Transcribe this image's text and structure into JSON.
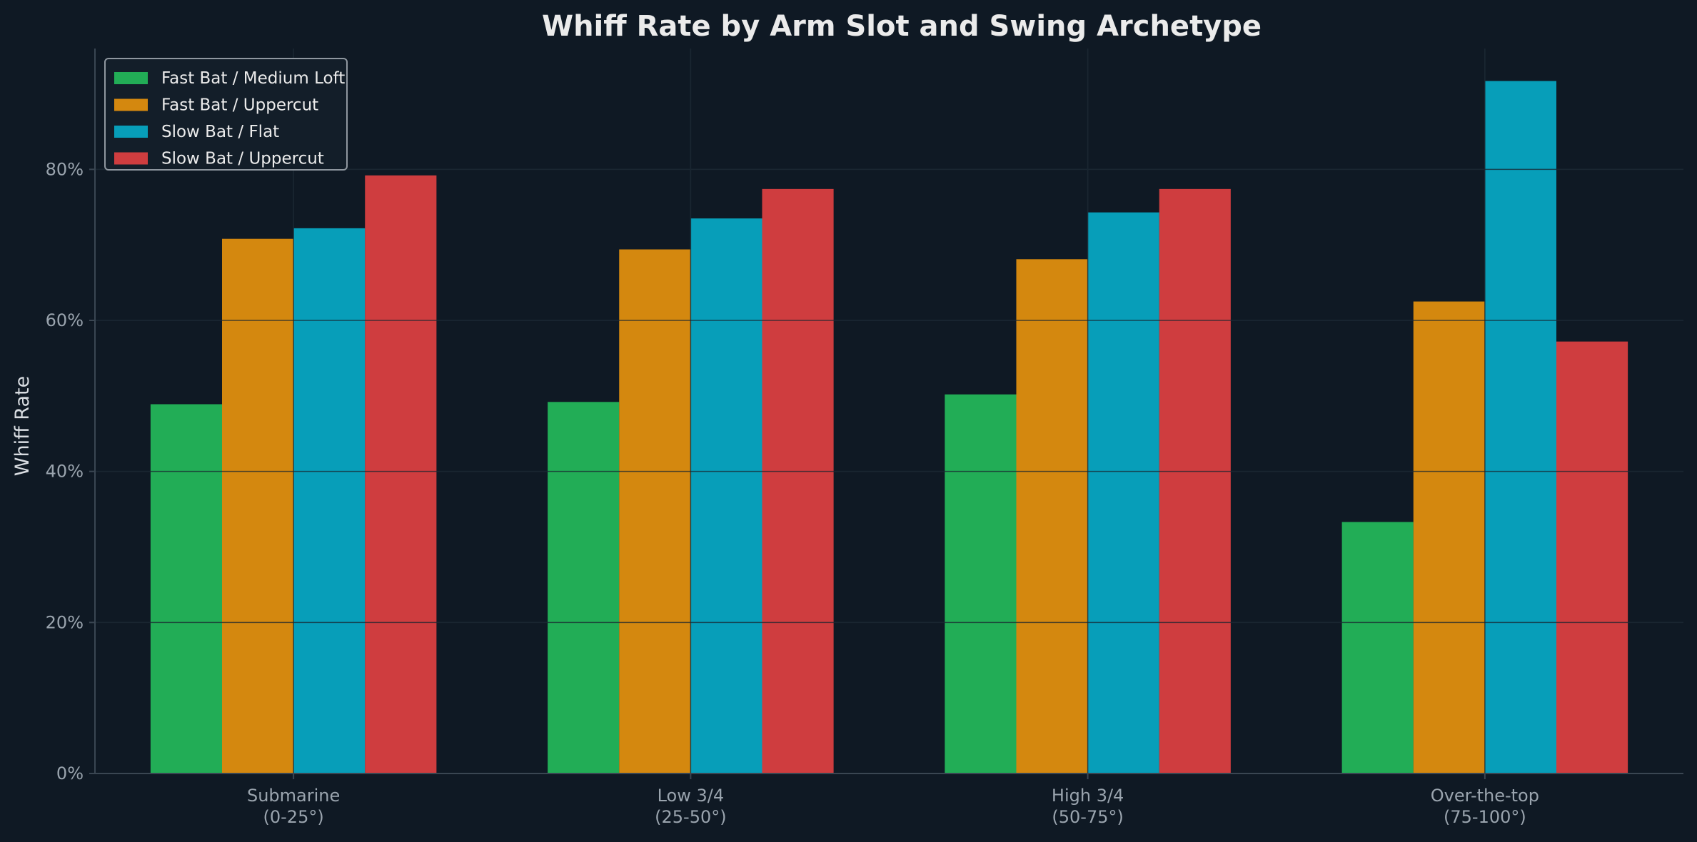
{
  "chart_data": {
    "type": "bar",
    "title": "Whiff Rate by Arm Slot and Swing Archetype",
    "xlabel": "",
    "ylabel": "Whiff Rate",
    "categories": [
      [
        "Submarine",
        "(0-25°)"
      ],
      [
        "Low 3/4",
        "(25-50°)"
      ],
      [
        "High 3/4",
        "(50-75°)"
      ],
      [
        "Over-the-top",
        "(75-100°)"
      ]
    ],
    "series": [
      {
        "name": "Fast Bat / Medium Loft",
        "color": "#22ad56",
        "values": [
          0.489,
          0.492,
          0.502,
          0.333
        ]
      },
      {
        "name": "Fast Bat / Uppercut",
        "color": "#d4880f",
        "values": [
          0.708,
          0.694,
          0.681,
          0.625
        ]
      },
      {
        "name": "Slow Bat / Flat",
        "color": "#079eb9",
        "values": [
          0.722,
          0.735,
          0.743,
          0.917
        ]
      },
      {
        "name": "Slow Bat / Uppercut",
        "color": "#cf3d3f",
        "values": [
          0.792,
          0.774,
          0.774,
          0.572
        ]
      }
    ],
    "ylim": [
      0,
      0.96
    ],
    "yticks": [
      0,
      0.2,
      0.4,
      0.6,
      0.8
    ],
    "ytick_labels": [
      "0%",
      "20%",
      "40%",
      "60%",
      "80%"
    ],
    "grid": true,
    "legend_position": "top-left"
  }
}
